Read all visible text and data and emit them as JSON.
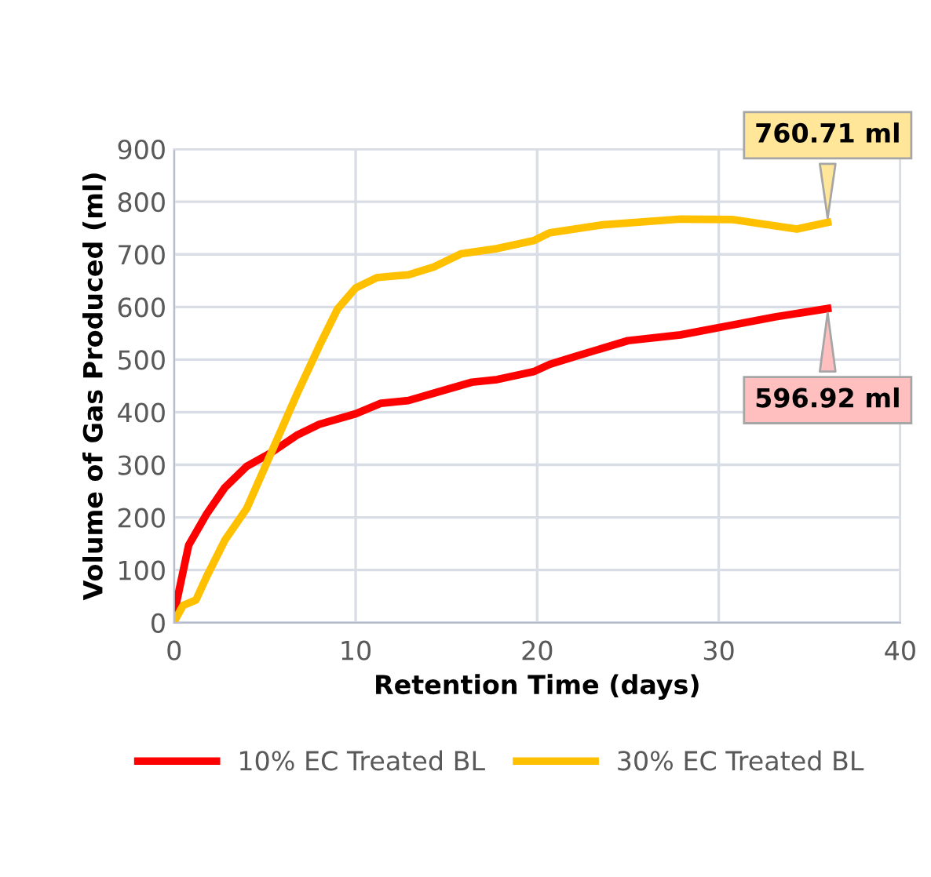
{
  "chart_data": {
    "type": "line",
    "xlabel": "Retention Time (days)",
    "ylabel": "Volume of Gas Produced (ml)",
    "xlim": [
      0,
      40
    ],
    "xticks": [
      0,
      10,
      20,
      30,
      40
    ],
    "ylim": [
      0,
      900
    ],
    "yticks": [
      0,
      100,
      200,
      300,
      400,
      500,
      600,
      700,
      800,
      900
    ],
    "grid": true,
    "legend": "bottom",
    "marker": "none",
    "line_style": "solid",
    "series": [
      {
        "name": "10% EC Treated BL",
        "color": "#ff0000",
        "x": [
          0,
          0.1,
          0.8,
          1.8,
          2.8,
          4.0,
          5.3,
          6.8,
          8.0,
          10.0,
          11.4,
          12.9,
          14.9,
          16.4,
          17.8,
          19.8,
          20.7,
          22.1,
          25.0,
          27.9,
          30.2,
          33.1,
          36.0
        ],
        "values": [
          0,
          33,
          147,
          207,
          257,
          297,
          322,
          357,
          377,
          397,
          417,
          422,
          442,
          457,
          462,
          477,
          491,
          506,
          536,
          547,
          562,
          581,
          596.92
        ]
      },
      {
        "name": "30% EC Treated BL",
        "color": "#ffc000",
        "x": [
          0.1,
          0.5,
          1.2,
          1.8,
          2.8,
          4.0,
          5.4,
          6.8,
          8.0,
          9.0,
          10.0,
          11.2,
          12.9,
          14.3,
          15.8,
          17.8,
          19.8,
          20.7,
          23.6,
          27.9,
          30.8,
          34.3,
          36.0
        ],
        "values": [
          8,
          33,
          43,
          88,
          157,
          217,
          327,
          437,
          526,
          596,
          636,
          656,
          661,
          676,
          701,
          711,
          726,
          741,
          756,
          767,
          766,
          748,
          760.71
        ]
      }
    ],
    "annotations": [
      {
        "text": "760.71 ml",
        "x": 36.0,
        "y": 760.71
      },
      {
        "text": "596.92 ml",
        "x": 36.0,
        "y": 596.92
      }
    ]
  }
}
